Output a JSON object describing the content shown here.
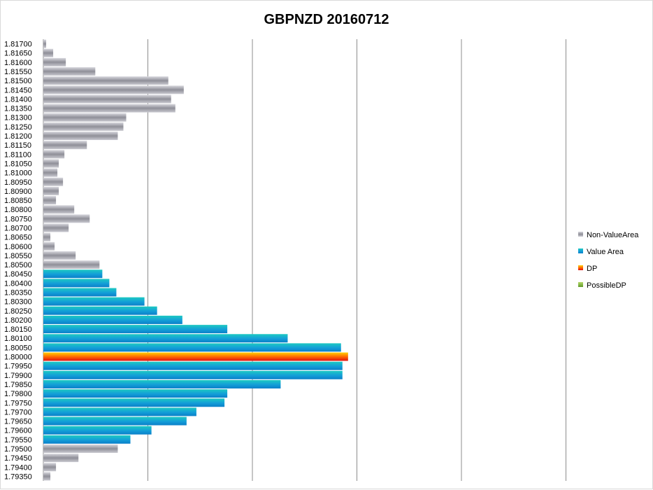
{
  "chart_data": {
    "type": "bar",
    "orientation": "horizontal",
    "title": "GBPNZD 20160712",
    "xlabel": "",
    "ylabel": "",
    "xlim": [
      0,
      260
    ],
    "grid": "vertical",
    "legend_placement": "right",
    "categories": [
      "1.81700",
      "1.81650",
      "1.81600",
      "1.81550",
      "1.81500",
      "1.81450",
      "1.81400",
      "1.81350",
      "1.81300",
      "1.81250",
      "1.81200",
      "1.81150",
      "1.81100",
      "1.81050",
      "1.81000",
      "1.80950",
      "1.80900",
      "1.80850",
      "1.80800",
      "1.80750",
      "1.80700",
      "1.80650",
      "1.80600",
      "1.80550",
      "1.80500",
      "1.80450",
      "1.80400",
      "1.80350",
      "1.80300",
      "1.80250",
      "1.80200",
      "1.80150",
      "1.80100",
      "1.80050",
      "1.80000",
      "1.79950",
      "1.79900",
      "1.79850",
      "1.79800",
      "1.79750",
      "1.79700",
      "1.79650",
      "1.79600",
      "1.79550",
      "1.79500",
      "1.79450",
      "1.79400",
      "1.79350"
    ],
    "series": [
      {
        "name": "Non-ValueArea",
        "color": "#a6a6ad",
        "values": [
          2,
          7,
          16,
          37,
          89,
          100,
          91,
          94,
          59,
          57,
          53,
          31,
          15,
          11,
          10,
          14,
          11,
          9,
          22,
          33,
          18,
          5,
          8,
          23,
          40,
          0,
          0,
          0,
          0,
          0,
          0,
          0,
          0,
          0,
          0,
          0,
          0,
          0,
          0,
          0,
          0,
          0,
          0,
          0,
          53,
          25,
          9,
          5
        ]
      },
      {
        "name": "Value Area",
        "color": "#12a6d6",
        "values": [
          0,
          0,
          0,
          0,
          0,
          0,
          0,
          0,
          0,
          0,
          0,
          0,
          0,
          0,
          0,
          0,
          0,
          0,
          0,
          0,
          0,
          0,
          0,
          0,
          0,
          42,
          47,
          52,
          72,
          81,
          99,
          131,
          174,
          212,
          0,
          213,
          213,
          169,
          131,
          129,
          109,
          102,
          77,
          62,
          0,
          0,
          0,
          0
        ]
      },
      {
        "name": "DP",
        "color": "#f25a00",
        "values": [
          0,
          0,
          0,
          0,
          0,
          0,
          0,
          0,
          0,
          0,
          0,
          0,
          0,
          0,
          0,
          0,
          0,
          0,
          0,
          0,
          0,
          0,
          0,
          0,
          0,
          0,
          0,
          0,
          0,
          0,
          0,
          0,
          0,
          0,
          217,
          0,
          0,
          0,
          0,
          0,
          0,
          0,
          0,
          0,
          0,
          0,
          0,
          0
        ]
      },
      {
        "name": "PossibleDP",
        "color": "#7fb33a",
        "values": [
          0,
          0,
          0,
          0,
          0,
          0,
          0,
          0,
          0,
          0,
          0,
          0,
          0,
          0,
          0,
          0,
          0,
          0,
          0,
          0,
          0,
          0,
          0,
          0,
          0,
          0,
          0,
          0,
          0,
          0,
          0,
          0,
          0,
          0,
          0,
          0,
          0,
          0,
          0,
          0,
          0,
          0,
          0,
          0,
          0,
          0,
          0,
          0
        ]
      }
    ]
  }
}
